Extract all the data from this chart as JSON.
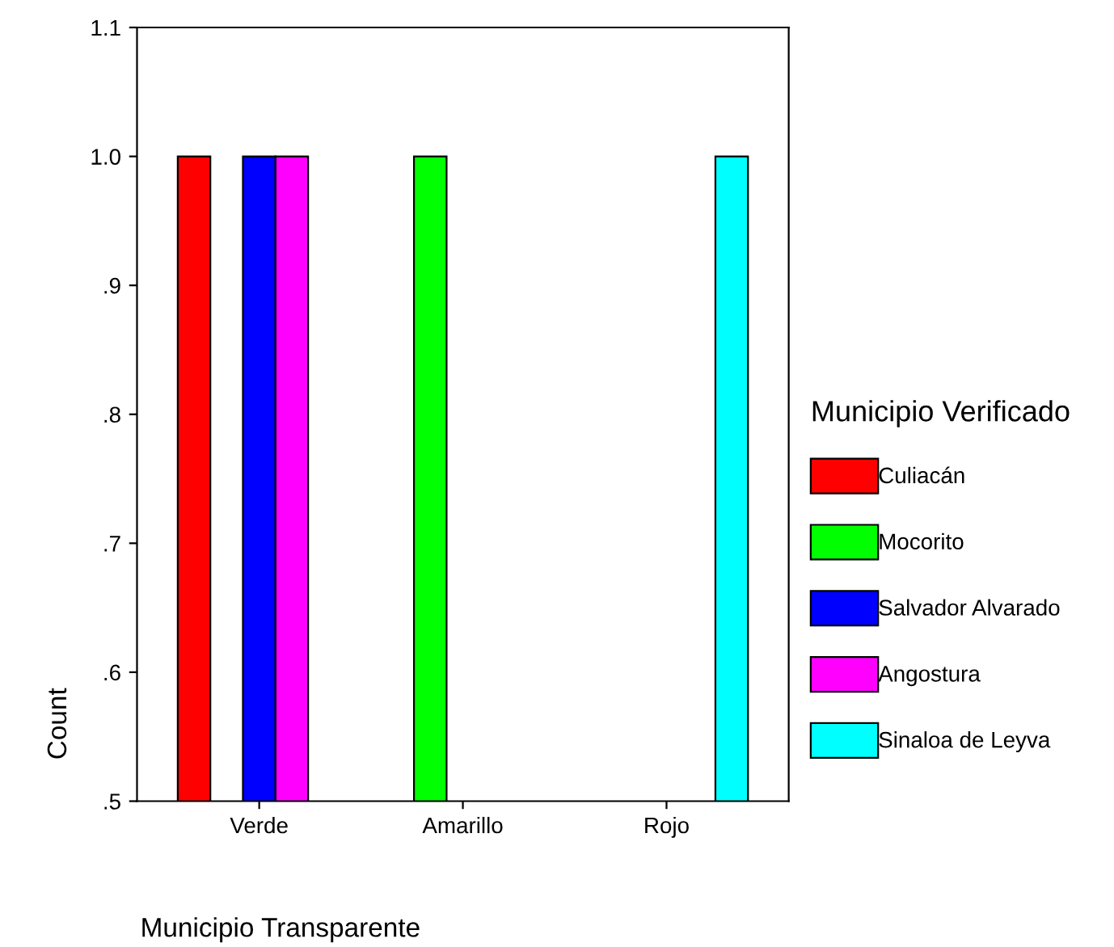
{
  "chart_data": {
    "type": "bar",
    "categories": [
      "Verde",
      "Amarillo",
      "Rojo"
    ],
    "series": [
      {
        "name": "Culiacán",
        "color": "#ff0000",
        "values": [
          1.0,
          null,
          null
        ]
      },
      {
        "name": "Mocorito",
        "color": "#00ff00",
        "values": [
          null,
          1.0,
          null
        ]
      },
      {
        "name": "Salvador Alvarado",
        "color": "#0000ff",
        "values": [
          1.0,
          null,
          null
        ]
      },
      {
        "name": "Angostura",
        "color": "#ff00ff",
        "values": [
          1.0,
          null,
          null
        ]
      },
      {
        "name": "Sinaloa de Leyva",
        "color": "#00ffff",
        "values": [
          null,
          null,
          1.0
        ]
      }
    ],
    "ylim": [
      0.5,
      1.1
    ],
    "yticks": [
      {
        "value": 0.5,
        "label": ".5"
      },
      {
        "value": 0.6,
        "label": ".6"
      },
      {
        "value": 0.7,
        "label": ".7"
      },
      {
        "value": 0.8,
        "label": ".8"
      },
      {
        "value": 0.9,
        "label": ".9"
      },
      {
        "value": 1.0,
        "label": "1.0"
      },
      {
        "value": 1.1,
        "label": "1.1"
      }
    ],
    "xlabel": "Municipio Transparente",
    "ylabel": "Count",
    "legend_title": "Municipio Verificado",
    "legend": "right",
    "grid": false
  }
}
